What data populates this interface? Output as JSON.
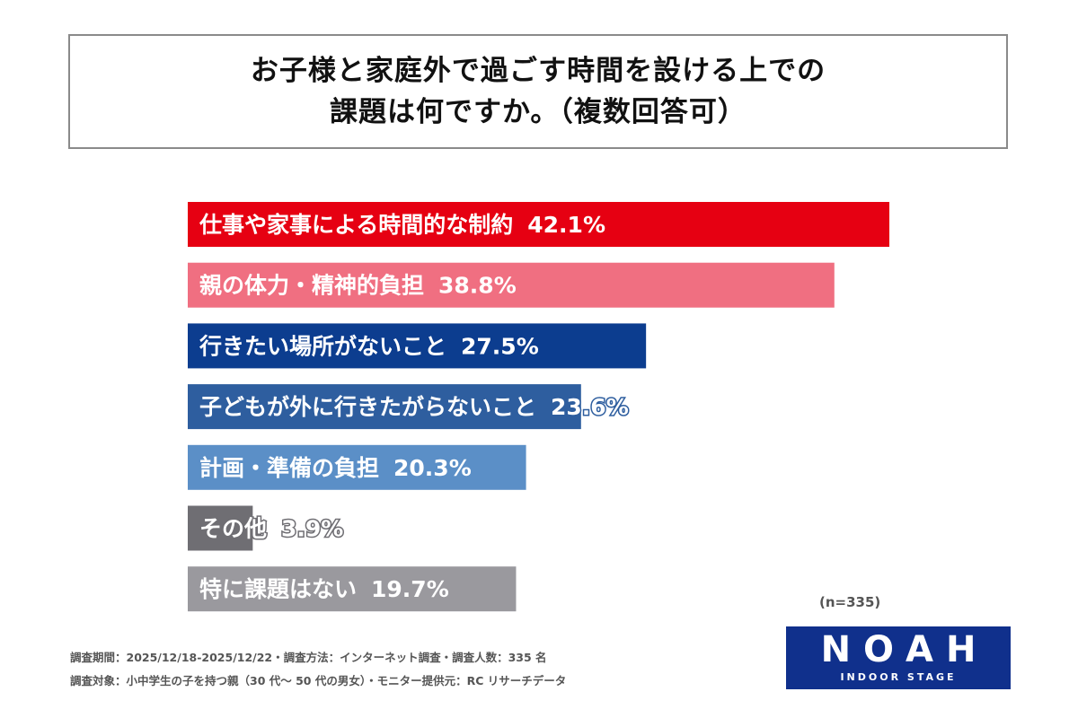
{
  "title": {
    "line1": "お子様と家庭外で過ごす時間を設ける上での",
    "line2": "課題は何ですか。（複数回答可）"
  },
  "chart_data": {
    "type": "bar",
    "orientation": "horizontal",
    "categories": [
      "仕事や家事による時間的な制約",
      "親の体力・精神的負担",
      "行きたい場所がないこと",
      "子どもが外に行きたがらないこと",
      "計画・準備の負担",
      "その他",
      "特に課題はない"
    ],
    "values": [
      42.1,
      38.8,
      27.5,
      23.6,
      20.3,
      3.9,
      19.7
    ],
    "value_labels": [
      "42.1%",
      "38.8%",
      "27.5%",
      "23.6%",
      "20.3%",
      "3.9%",
      "19.7%"
    ],
    "colors": [
      "#e60012",
      "#f06f81",
      "#0c3d8f",
      "#2e5e9f",
      "#5b8fc7",
      "#6f6e73",
      "#9a999e"
    ],
    "unit": "%"
  },
  "sample_size": "(n=335)",
  "footnotes": {
    "line1": "調査期間：2025/12/18-2025/12/22・調査方法：インターネット調査・調査人数：335 名",
    "line2": "調査対象：小中学生の子を持つ親（30 代～ 50 代の男女）・モニター提供元：RC リサーチデータ"
  },
  "logo": {
    "main": "NOAH",
    "sub": "INDOOR STAGE",
    "color": "#10308c"
  }
}
